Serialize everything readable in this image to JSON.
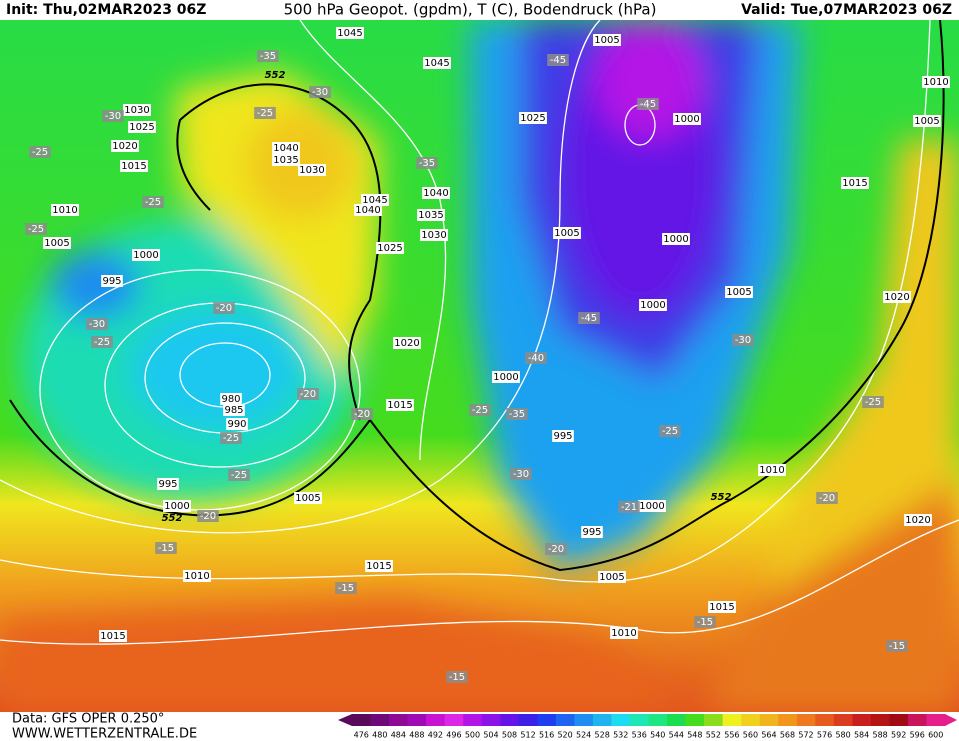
{
  "header": {
    "init": "Init: Thu,02MAR2023 06Z",
    "title": "500 hPa Geopot. (gpdm), T (C), Bodendruck (hPa)",
    "valid": "Valid: Tue,07MAR2023 06Z"
  },
  "footer": {
    "data": "Data: GFS OPER 0.250°",
    "site": "WWW.WETTERZENTRALE.DE"
  },
  "colorbar": {
    "ticks": [
      476,
      480,
      484,
      488,
      492,
      496,
      500,
      504,
      508,
      512,
      516,
      520,
      524,
      528,
      532,
      536,
      540,
      544,
      548,
      552,
      556,
      560,
      564,
      568,
      572,
      576,
      580,
      584,
      588,
      592,
      596,
      600
    ],
    "colors": [
      "#5a0a5a",
      "#6e0a78",
      "#8c0a96",
      "#a00ab4",
      "#c814d2",
      "#dc28e6",
      "#b414e6",
      "#8c14e6",
      "#6414e6",
      "#3c1ee6",
      "#1e3cf0",
      "#1e64f0",
      "#1e8cf0",
      "#1eb4f0",
      "#1edcf0",
      "#1ee6b4",
      "#1ee682",
      "#1edc50",
      "#46dc1e",
      "#8cdc1e",
      "#f0f01e",
      "#f0d21e",
      "#f0b41e",
      "#f0961e",
      "#f0781e",
      "#e65a1e",
      "#dc3c1e",
      "#c81e1e",
      "#b41414",
      "#a00a14",
      "#c8145a",
      "#e61e8c"
    ]
  },
  "map": {
    "isobar_labels": [
      "1045",
      "1045",
      "1005",
      "1010",
      "1030",
      "1025",
      "1020",
      "1015",
      "1010",
      "1005",
      "1000",
      "995",
      "1040",
      "1035",
      "1030",
      "1045",
      "1040",
      "1040",
      "1035",
      "1030",
      "1025",
      "1025",
      "1000",
      "1005",
      "1015",
      "1005",
      "1000",
      "1000",
      "1005",
      "1020",
      "1020",
      "1000",
      "1015",
      "980",
      "985",
      "990",
      "995",
      "995",
      "1000",
      "1005",
      "1010",
      "1000",
      "995",
      "1010",
      "1015",
      "1005",
      "1015",
      "1010",
      "1015",
      "1020"
    ],
    "temperature_labels": [
      "-35",
      "-30",
      "-30",
      "-25",
      "-25",
      "-35",
      "-25",
      "-25",
      "-45",
      "-45",
      "-30",
      "-25",
      "-20",
      "-20",
      "-20",
      "-25",
      "-25",
      "-20",
      "-15",
      "-15",
      "-15",
      "-15",
      "-15",
      "-45",
      "-40",
      "-35",
      "-25",
      "-30",
      "-25",
      "-25",
      "-30",
      "-20",
      "-21",
      "-20"
    ],
    "height_labels": [
      "552",
      "552",
      "552"
    ]
  }
}
